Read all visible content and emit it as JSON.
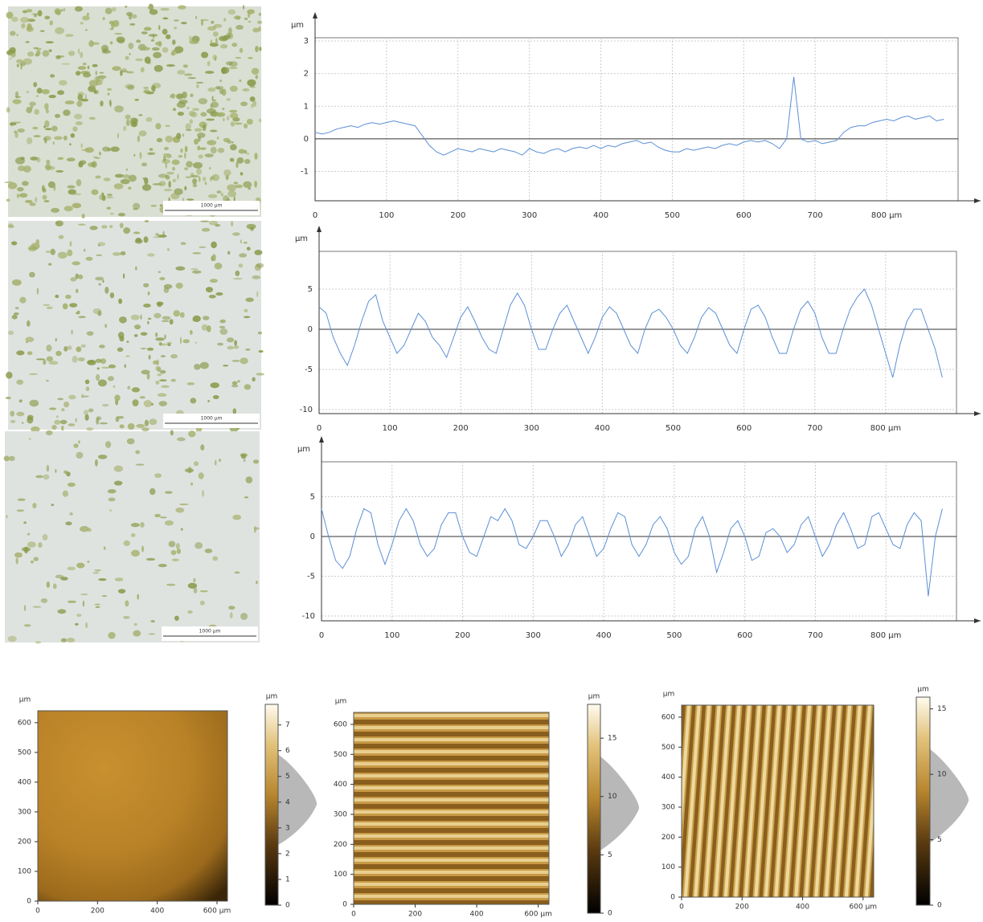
{
  "images": [
    {
      "scale_label": "1000 µm"
    },
    {
      "scale_label": "1000 µm"
    },
    {
      "scale_label": "1000 µm"
    }
  ],
  "chart_data": [
    {
      "type": "line",
      "ylabel": "µm",
      "color": "#5b8fd6",
      "grid": true,
      "xlim": [
        0,
        900
      ],
      "ylim": [
        -1.9,
        3.1
      ],
      "xticks": [
        0,
        100,
        200,
        300,
        400,
        500,
        600,
        700,
        {
          "value": 800,
          "label": "800 µm"
        }
      ],
      "yticks": [
        -1,
        0,
        1,
        2,
        3
      ],
      "x": [
        0,
        10,
        20,
        30,
        40,
        50,
        60,
        70,
        80,
        90,
        100,
        110,
        120,
        130,
        140,
        150,
        160,
        170,
        180,
        190,
        200,
        210,
        220,
        230,
        240,
        250,
        260,
        270,
        280,
        290,
        300,
        310,
        320,
        330,
        340,
        350,
        360,
        370,
        380,
        390,
        400,
        410,
        420,
        430,
        440,
        450,
        460,
        470,
        480,
        490,
        500,
        510,
        520,
        530,
        540,
        550,
        560,
        570,
        580,
        590,
        600,
        610,
        620,
        630,
        640,
        650,
        660,
        670,
        680,
        690,
        700,
        710,
        720,
        730,
        740,
        750,
        760,
        770,
        780,
        790,
        800,
        810,
        820,
        830,
        840,
        850,
        860,
        870,
        880
      ],
      "values": [
        0.2,
        0.15,
        0.2,
        0.3,
        0.35,
        0.4,
        0.35,
        0.45,
        0.5,
        0.45,
        0.5,
        0.55,
        0.5,
        0.45,
        0.4,
        0.1,
        -0.2,
        -0.4,
        -0.5,
        -0.4,
        -0.3,
        -0.35,
        -0.4,
        -0.3,
        -0.35,
        -0.4,
        -0.3,
        -0.35,
        -0.4,
        -0.5,
        -0.3,
        -0.4,
        -0.45,
        -0.35,
        -0.3,
        -0.4,
        -0.3,
        -0.25,
        -0.3,
        -0.2,
        -0.3,
        -0.2,
        -0.25,
        -0.15,
        -0.1,
        -0.05,
        -0.15,
        -0.1,
        -0.25,
        -0.35,
        -0.4,
        -0.4,
        -0.3,
        -0.35,
        -0.3,
        -0.25,
        -0.3,
        -0.2,
        -0.15,
        -0.2,
        -0.1,
        -0.05,
        -0.1,
        -0.05,
        -0.15,
        -0.3,
        0.0,
        1.9,
        0.0,
        -0.1,
        -0.05,
        -0.15,
        -0.1,
        -0.05,
        0.2,
        0.35,
        0.4,
        0.4,
        0.5,
        0.55,
        0.6,
        0.55,
        0.65,
        0.7,
        0.6,
        0.65,
        0.7,
        0.55,
        0.6
      ]
    },
    {
      "type": "line",
      "ylabel": "µm",
      "color": "#5b8fd6",
      "grid": true,
      "xlim": [
        0,
        900
      ],
      "ylim": [
        -10.5,
        9.7
      ],
      "xticks": [
        0,
        100,
        200,
        300,
        400,
        500,
        600,
        700,
        {
          "value": 800,
          "label": "800 µm"
        }
      ],
      "yticks": [
        -10,
        -5,
        0,
        5
      ],
      "x": [
        0,
        10,
        20,
        30,
        40,
        50,
        60,
        70,
        80,
        90,
        100,
        110,
        120,
        130,
        140,
        150,
        160,
        170,
        180,
        190,
        200,
        210,
        220,
        230,
        240,
        250,
        260,
        270,
        280,
        290,
        300,
        310,
        320,
        330,
        340,
        350,
        360,
        370,
        380,
        390,
        400,
        410,
        420,
        430,
        440,
        450,
        460,
        470,
        480,
        490,
        500,
        510,
        520,
        530,
        540,
        550,
        560,
        570,
        580,
        590,
        600,
        610,
        620,
        630,
        640,
        650,
        660,
        670,
        680,
        690,
        700,
        710,
        720,
        730,
        740,
        750,
        760,
        770,
        780,
        790,
        800,
        810,
        820,
        830,
        840,
        850,
        860,
        870,
        880
      ],
      "values": [
        2.8,
        2,
        -1,
        -3,
        -4.5,
        -2,
        1,
        3.5,
        4.3,
        1,
        -1,
        -3,
        -2,
        0,
        2,
        1,
        -1,
        -2,
        -3.5,
        -1,
        1.5,
        2.8,
        1,
        -1,
        -2.5,
        -3,
        0,
        3,
        4.5,
        3,
        0,
        -2.5,
        -2.5,
        0,
        2,
        3,
        1,
        -1,
        -3,
        -1,
        1.5,
        2.8,
        2,
        0,
        -2,
        -3,
        0,
        2,
        2.5,
        1.5,
        0,
        -2,
        -3,
        -1,
        1.5,
        2.7,
        2,
        0,
        -2,
        -3,
        0,
        2.5,
        3,
        1.5,
        -1,
        -3,
        -3,
        0,
        2.5,
        3.5,
        2,
        -1,
        -3,
        -3,
        0,
        2.5,
        4,
        5,
        3,
        0,
        -3,
        -6,
        -2,
        1,
        2.5,
        2.5,
        0,
        -2.5,
        -6
      ]
    },
    {
      "type": "line",
      "ylabel": "µm",
      "color": "#5b8fd6",
      "grid": true,
      "xlim": [
        0,
        900
      ],
      "ylim": [
        -10.6,
        9.4
      ],
      "xticks": [
        0,
        100,
        200,
        300,
        400,
        500,
        600,
        700,
        {
          "value": 800,
          "label": "800 µm"
        }
      ],
      "yticks": [
        -10,
        -5,
        0,
        5
      ],
      "x": [
        0,
        10,
        20,
        30,
        40,
        50,
        60,
        70,
        80,
        90,
        100,
        110,
        120,
        130,
        140,
        150,
        160,
        170,
        180,
        190,
        200,
        210,
        220,
        230,
        240,
        250,
        260,
        270,
        280,
        290,
        300,
        310,
        320,
        330,
        340,
        350,
        360,
        370,
        380,
        390,
        400,
        410,
        420,
        430,
        440,
        450,
        460,
        470,
        480,
        490,
        500,
        510,
        520,
        530,
        540,
        550,
        560,
        570,
        580,
        590,
        600,
        610,
        620,
        630,
        640,
        650,
        660,
        670,
        680,
        690,
        700,
        710,
        720,
        730,
        740,
        750,
        760,
        770,
        780,
        790,
        800,
        810,
        820,
        830,
        840,
        850,
        860,
        870,
        880
      ],
      "values": [
        3.5,
        0,
        -3,
        -4,
        -2.5,
        1,
        3.5,
        3,
        -1,
        -3.5,
        -1,
        2,
        3.5,
        2,
        -1,
        -2.5,
        -1.5,
        1.5,
        3,
        3,
        0,
        -2,
        -2.5,
        0,
        2.5,
        2,
        3.5,
        2,
        -1,
        -1.5,
        0,
        2,
        2,
        0,
        -2.5,
        -1,
        1.5,
        2.5,
        0,
        -2.5,
        -1.5,
        1,
        3,
        2.5,
        -1,
        -2.5,
        -1,
        1.5,
        2.5,
        1,
        -2,
        -3.5,
        -2.5,
        1,
        2.5,
        0,
        -4.5,
        -2,
        1,
        2,
        0,
        -3,
        -2.5,
        0.5,
        1,
        0,
        -2,
        -1,
        1.5,
        2.5,
        0,
        -2.5,
        -1,
        1.5,
        3,
        1,
        -1.5,
        -1,
        2.5,
        3,
        1,
        -1,
        -1.5,
        1.5,
        3,
        2,
        -7.5,
        0,
        3.5
      ]
    },
    {
      "type": "heightmap",
      "ylabel": "µm",
      "xlim": [
        0,
        635
      ],
      "ylim": [
        0,
        640
      ],
      "xticks": [
        0,
        200,
        400,
        {
          "value": 600,
          "label": "600 µm"
        }
      ],
      "yticks": [
        0,
        100,
        200,
        300,
        400,
        500,
        600
      ],
      "colorbar_label": "µm",
      "clim": [
        0,
        7.8
      ],
      "cticks": [
        0,
        1,
        2,
        3,
        4,
        5,
        6,
        7
      ]
    },
    {
      "type": "heightmap",
      "ylabel": "µm",
      "xlim": [
        0,
        635
      ],
      "ylim": [
        0,
        640
      ],
      "xticks": [
        0,
        200,
        400,
        {
          "value": 600,
          "label": "600 µm"
        }
      ],
      "yticks": [
        0,
        100,
        200,
        300,
        400,
        500,
        600
      ],
      "colorbar_label": "µm",
      "clim": [
        0,
        17.9
      ],
      "cticks": [
        0,
        5,
        10,
        15
      ]
    },
    {
      "type": "heightmap",
      "ylabel": "µm",
      "xlim": [
        0,
        635
      ],
      "ylim": [
        0,
        640
      ],
      "xticks": [
        0,
        200,
        400,
        {
          "value": 600,
          "label": "600 µm"
        }
      ],
      "yticks": [
        0,
        100,
        200,
        300,
        400,
        500,
        600
      ],
      "colorbar_label": "µm",
      "clim": [
        0,
        15.9
      ],
      "cticks": [
        0,
        5,
        10,
        15
      ]
    }
  ]
}
